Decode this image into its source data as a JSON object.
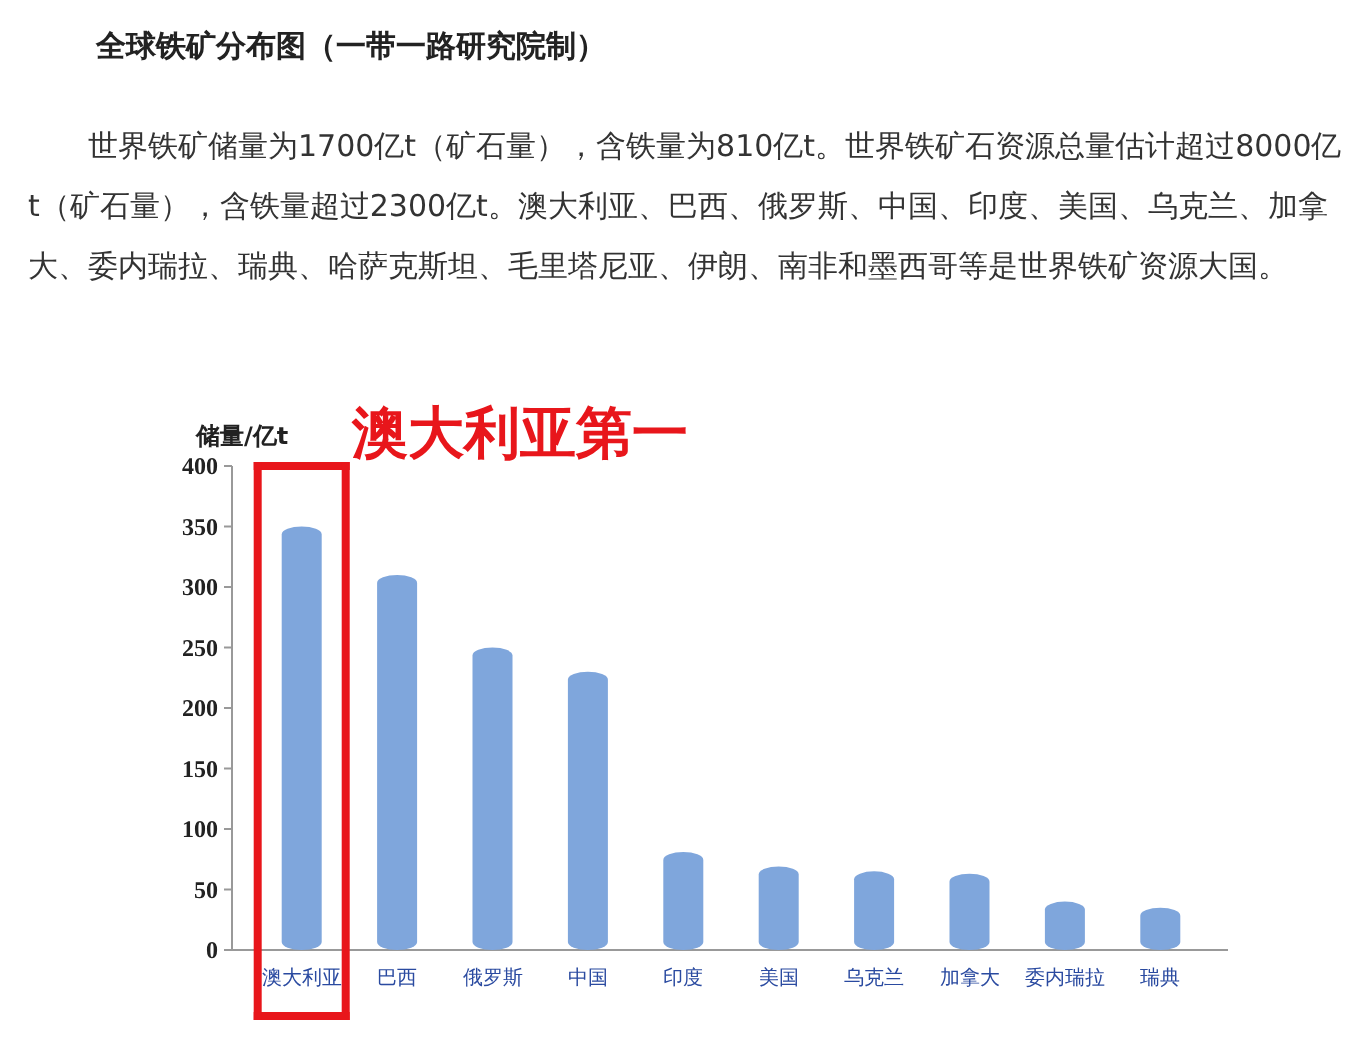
{
  "chart_data": {
    "type": "bar",
    "title": "全球铁矿分布图（一带一路研究院制）",
    "subtitle": "世界铁矿储量为1700亿t（矿石量），含铁量为810亿t。世界铁矿石资源总量估计超过8000亿t（矿石量），含铁量超过2300亿t。澳大利亚、巴西、俄罗斯、中国、印度、美国、乌克兰、加拿大、委内瑞拉、瑞典、哈萨克斯坦、毛里塔尼亚、伊朗、南非和墨西哥等是世界铁矿资源大国。",
    "ylabel": "储量/亿t",
    "categories": [
      "澳大利亚",
      "巴西",
      "俄罗斯",
      "中国",
      "印度",
      "美国",
      "乌克兰",
      "加拿大",
      "委内瑞拉",
      "瑞典"
    ],
    "values": [
      350,
      310,
      250,
      230,
      81,
      69,
      65,
      63,
      40,
      35
    ],
    "color": "#7fa6dc",
    "ylim": [
      0,
      400
    ],
    "yticks": [
      0,
      50,
      100,
      150,
      200,
      250,
      300,
      350,
      400
    ],
    "annotations": [
      "澳大利亚第一"
    ]
  }
}
